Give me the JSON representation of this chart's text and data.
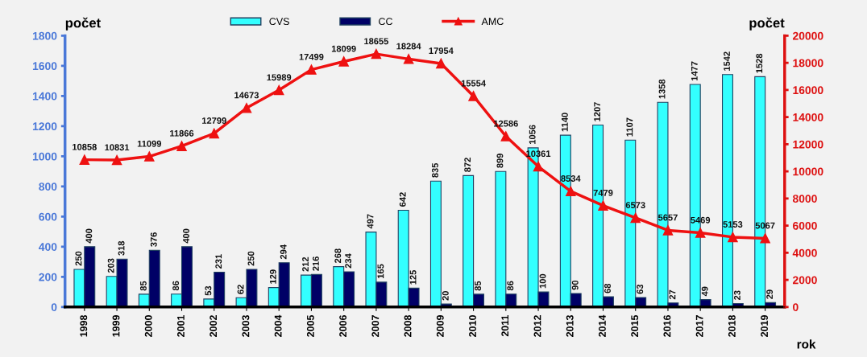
{
  "chart_data": {
    "type": "bar",
    "ylabel": "počet",
    "y2label": "počet",
    "xlabel": "rok",
    "categories": [
      "1998",
      "1999",
      "2000",
      "2001",
      "2002",
      "2003",
      "2004",
      "2005",
      "2006",
      "2007",
      "2008",
      "2009",
      "2010",
      "2011",
      "2012",
      "2013",
      "2014",
      "2015",
      "2016",
      "2017",
      "2018",
      "2019"
    ],
    "series": [
      {
        "name": "CVS",
        "color": "#33ffff",
        "values": [
          250,
          203,
          85,
          86,
          53,
          62,
          129,
          212,
          268,
          497,
          642,
          835,
          872,
          899,
          1056,
          1140,
          1207,
          1107,
          1358,
          1477,
          1542,
          1528
        ]
      },
      {
        "name": "CC",
        "color": "#000066",
        "values": [
          400,
          318,
          376,
          400,
          231,
          250,
          294,
          216,
          234,
          165,
          125,
          20,
          85,
          86,
          100,
          90,
          68,
          63,
          27,
          49,
          23,
          29
        ]
      },
      {
        "name": "AMC",
        "type": "line",
        "axis": "y2",
        "color": "#ee1111",
        "marker": "triangle",
        "values": [
          10858,
          10831,
          11099,
          11866,
          12799,
          14673,
          15989,
          17499,
          18099,
          18655,
          18284,
          17954,
          15554,
          12586,
          10361,
          8534,
          7479,
          6573,
          5657,
          5469,
          5153,
          5067
        ]
      }
    ],
    "ylim": [
      0,
      1800
    ],
    "yticks": [
      0,
      200,
      400,
      600,
      800,
      1000,
      1200,
      1400,
      1600,
      1800
    ],
    "y2lim": [
      0,
      20000
    ],
    "y2ticks": [
      0,
      2000,
      4000,
      6000,
      8000,
      10000,
      12000,
      14000,
      16000,
      18000,
      20000
    ],
    "data_labels": true,
    "legend": "top",
    "grid": false
  }
}
